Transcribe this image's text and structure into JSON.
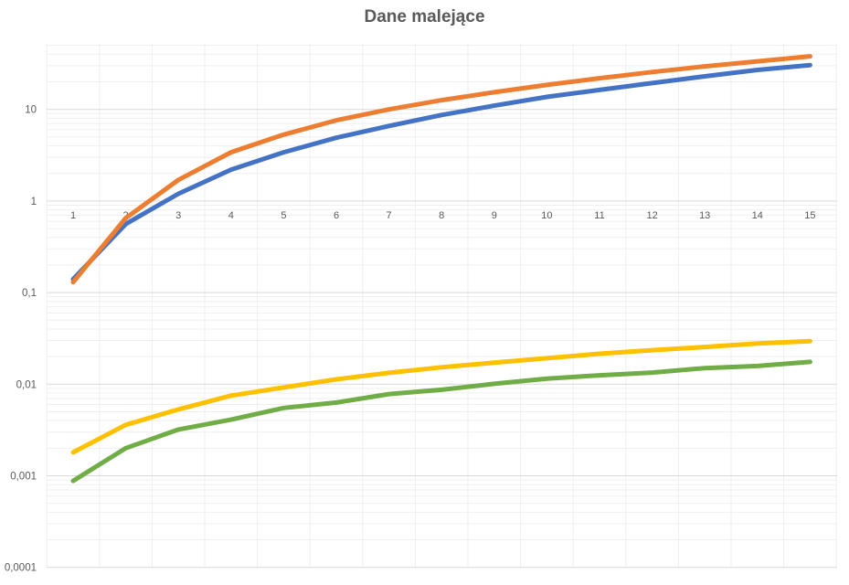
{
  "chart_data": {
    "type": "line",
    "title": "Dane malejące",
    "xlabel": "",
    "ylabel": "",
    "x": [
      1,
      2,
      3,
      4,
      5,
      6,
      7,
      8,
      9,
      10,
      11,
      12,
      13,
      14,
      15
    ],
    "y_scale": "log",
    "ylim": [
      0.0001,
      100
    ],
    "y_tick_labels": [
      "0,0001",
      "0,001",
      "0,01",
      "0,1",
      "1",
      "10"
    ],
    "x_tick_labels": [
      "1",
      "2",
      "3",
      "4",
      "5",
      "6",
      "7",
      "8",
      "9",
      "10",
      "11",
      "12",
      "13",
      "14",
      "15"
    ],
    "grid": true,
    "minor_grid": true,
    "legend": "none",
    "series": [
      {
        "color": "#4472C4",
        "values": [
          0.14,
          0.56,
          1.2,
          2.2,
          3.4,
          4.9,
          6.6,
          8.7,
          11,
          13.7,
          16.3,
          19.4,
          23,
          27,
          30.5
        ]
      },
      {
        "color": "#ED7D31",
        "values": [
          0.13,
          0.65,
          1.7,
          3.4,
          5.3,
          7.6,
          10,
          12.6,
          15.4,
          18.5,
          21.9,
          25.6,
          29.5,
          33.5,
          38
        ]
      },
      {
        "color": "#FFC000",
        "values": [
          0.0018,
          0.0036,
          0.0053,
          0.0075,
          0.0092,
          0.0113,
          0.0133,
          0.0153,
          0.0172,
          0.0192,
          0.0215,
          0.0235,
          0.0255,
          0.0278,
          0.0295
        ]
      },
      {
        "color": "#70AD47",
        "values": [
          0.00088,
          0.002,
          0.0032,
          0.0041,
          0.0055,
          0.0063,
          0.0078,
          0.0087,
          0.0101,
          0.0115,
          0.0125,
          0.0134,
          0.015,
          0.0158,
          0.0175
        ]
      }
    ]
  }
}
